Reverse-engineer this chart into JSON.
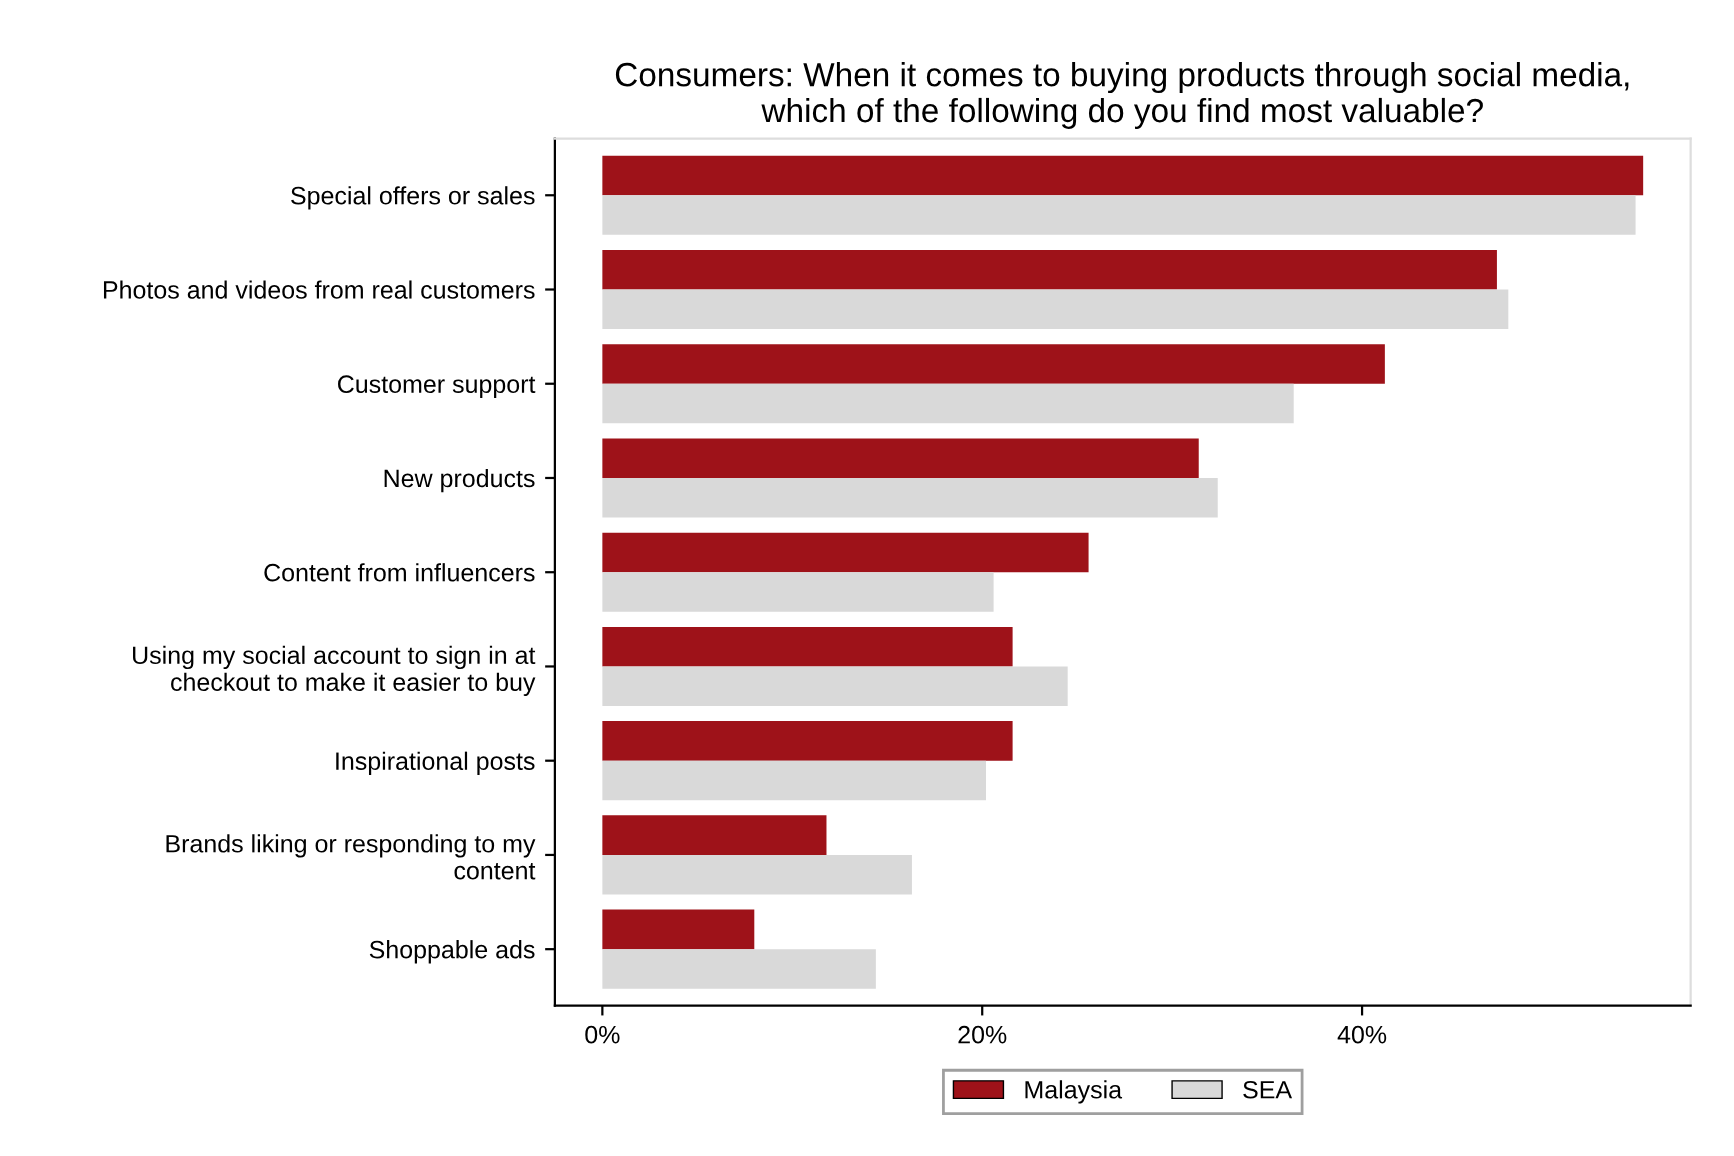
{
  "chart_data": {
    "type": "bar",
    "orientation": "horizontal",
    "title": "Consumers: When it comes to buying products through social media,\nwhich of the following do you find most valuable?",
    "categories": [
      "Special offers or sales",
      "Photos and videos from real customers",
      "Customer support",
      "New products",
      "Content from influencers",
      "Using my social account to sign in at\ncheckout to make it easier to buy",
      "Inspirational posts",
      "Brands liking or responding to my\ncontent",
      "Shoppable ads"
    ],
    "series": [
      {
        "name": "Malaysia",
        "color": "#9e1219",
        "values": [
          54.8,
          47.1,
          41.2,
          31.4,
          25.6,
          21.6,
          21.6,
          11.8,
          8.0
        ]
      },
      {
        "name": "SEA",
        "color": "#d9d9d9",
        "values": [
          54.4,
          47.7,
          36.4,
          32.4,
          20.6,
          24.5,
          20.2,
          16.3,
          14.4
        ]
      }
    ],
    "xlim": [
      -2.5,
      57.3
    ],
    "xticks": [
      {
        "value": 0,
        "label": "0%"
      },
      {
        "value": 20,
        "label": "20%"
      },
      {
        "value": 40,
        "label": "40%"
      }
    ],
    "grid": false,
    "legend": "bottom"
  }
}
